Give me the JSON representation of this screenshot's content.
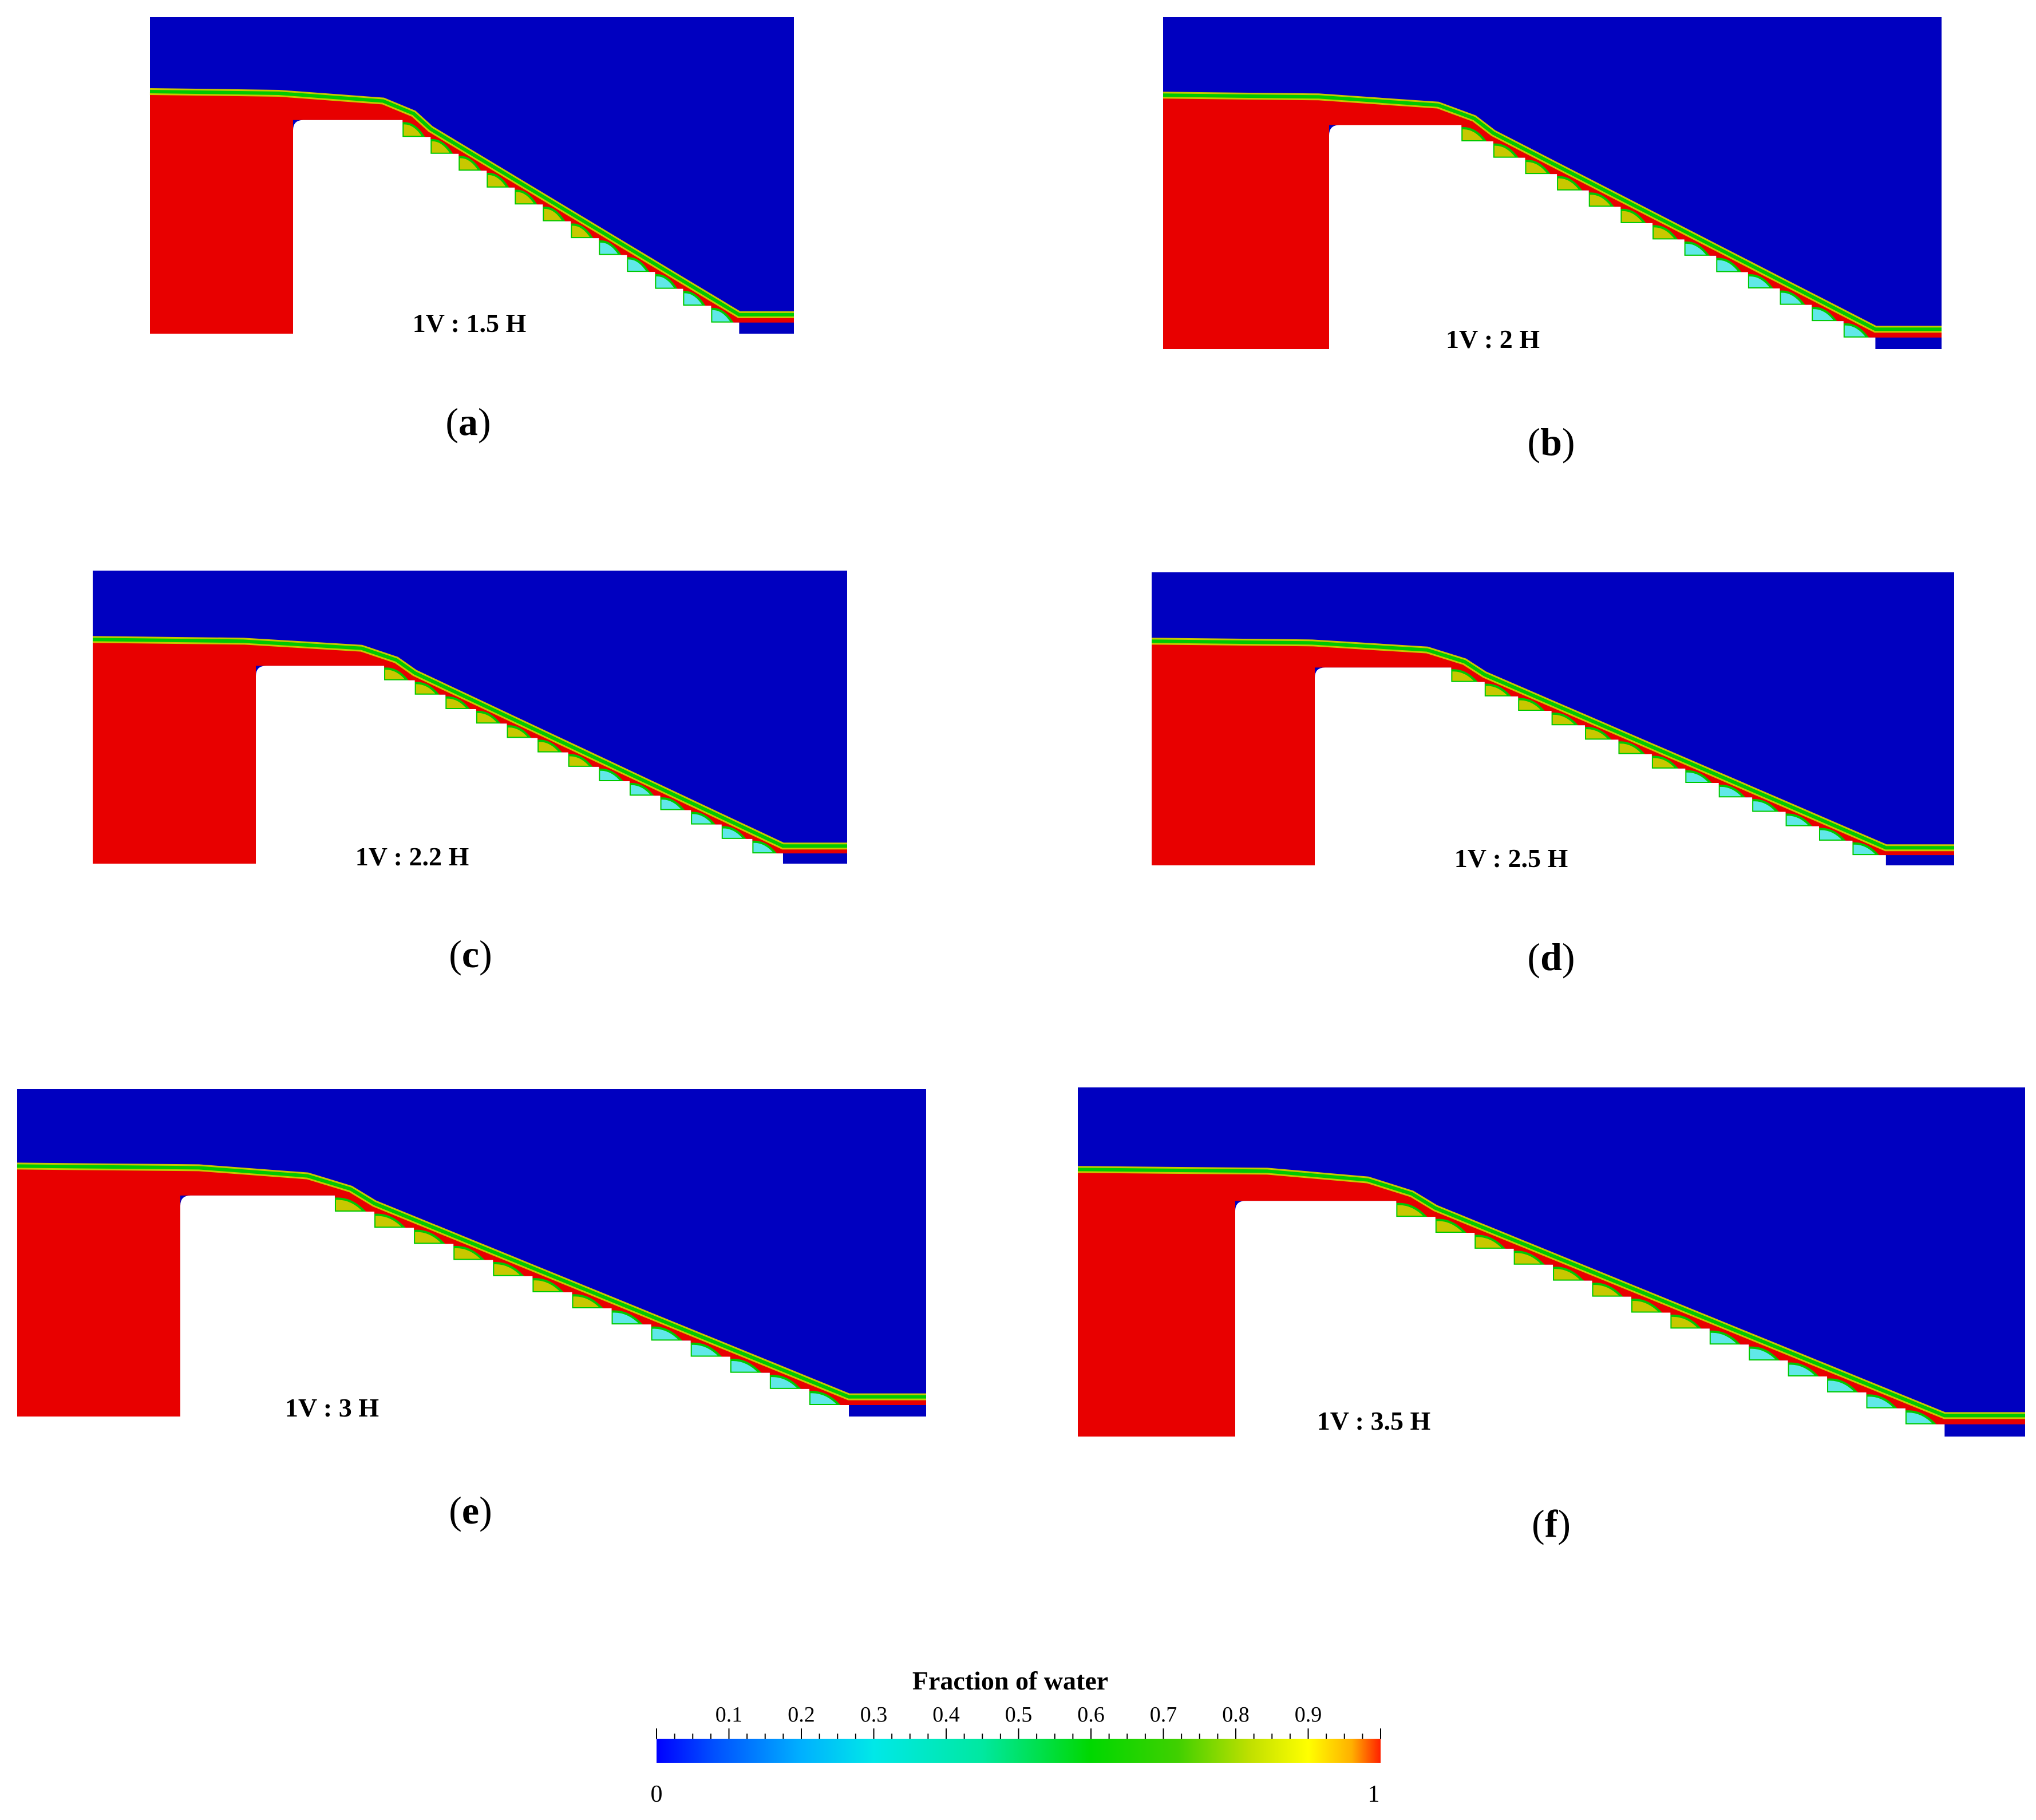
{
  "panels": [
    {
      "id": "a",
      "label": "a",
      "slope_label": "1V : 1.5 H",
      "slope_h": 1.5,
      "steps": 12
    },
    {
      "id": "b",
      "label": "b",
      "slope_label": "1V : 2 H",
      "slope_h": 2.0,
      "steps": 13
    },
    {
      "id": "c",
      "label": "c",
      "slope_label": "1V : 2.2 H",
      "slope_h": 2.2,
      "steps": 13
    },
    {
      "id": "d",
      "label": "d",
      "slope_label": "1V : 2.5 H",
      "slope_h": 2.5,
      "steps": 13
    },
    {
      "id": "e",
      "label": "e",
      "slope_label": "1V : 3 H",
      "slope_h": 3.0,
      "steps": 13
    },
    {
      "id": "f",
      "label": "f",
      "slope_label": "1V : 3.5 H",
      "slope_h": 3.5,
      "steps": 14
    }
  ],
  "colorbar": {
    "title": "Fraction of water",
    "ticks": [
      "0.1",
      "0.2",
      "0.3",
      "0.4",
      "0.5",
      "0.6",
      "0.7",
      "0.8",
      "0.9"
    ],
    "min_label": "0",
    "max_label": "1",
    "min": 0,
    "max": 1
  },
  "colors": {
    "air": "#0000c0",
    "water": "#e80000",
    "interface": "#00c800",
    "mixed": "#c8c800",
    "cavity": "#60e8e8",
    "weir": "#ffffff"
  }
}
